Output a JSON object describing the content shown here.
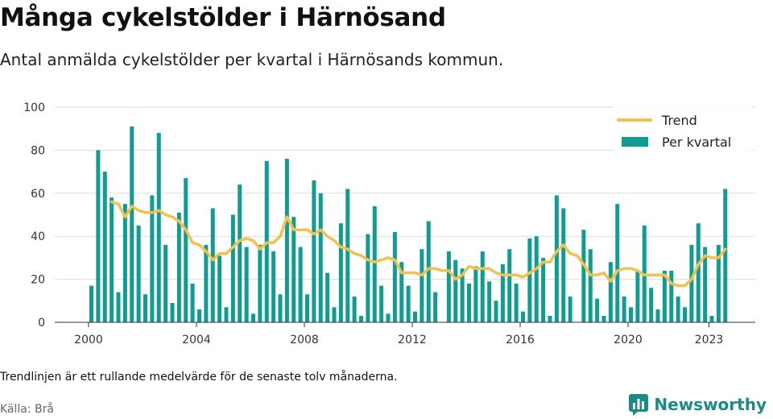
{
  "header": {
    "title": "Många cykelstölder i Härnösand",
    "subtitle": "Antal anmälda cykelstölder per kvartal i Härnösands kommun."
  },
  "footer": {
    "note": "Trendlinjen är ett rullande medelvärde för de senaste tolv månaderna.",
    "source": "Källa: Brå",
    "brand": "Newsworthy"
  },
  "colors": {
    "bars": "#0f9c92",
    "trend": "#f2c14e",
    "grid": "#dddddd",
    "brand": "#1a8c85"
  },
  "icons": {
    "brand_logo": "newsworthy-logo-icon"
  },
  "chart_data": {
    "type": "bar",
    "title": "",
    "xlabel": "",
    "ylabel": "",
    "ylim": [
      0,
      100
    ],
    "yticks": [
      0,
      20,
      40,
      60,
      80,
      100
    ],
    "xticks": [
      2000,
      2004,
      2008,
      2012,
      2016,
      2020,
      2023
    ],
    "grid": true,
    "legend_position": "top-right",
    "legend": [
      "Trend",
      "Per kvartal"
    ],
    "categories": [
      "2000Q1",
      "2000Q2",
      "2000Q3",
      "2000Q4",
      "2001Q1",
      "2001Q2",
      "2001Q3",
      "2001Q4",
      "2002Q1",
      "2002Q2",
      "2002Q3",
      "2002Q4",
      "2003Q1",
      "2003Q2",
      "2003Q3",
      "2003Q4",
      "2004Q1",
      "2004Q2",
      "2004Q3",
      "2004Q4",
      "2005Q1",
      "2005Q2",
      "2005Q3",
      "2005Q4",
      "2006Q1",
      "2006Q2",
      "2006Q3",
      "2006Q4",
      "2007Q1",
      "2007Q2",
      "2007Q3",
      "2007Q4",
      "2008Q1",
      "2008Q2",
      "2008Q3",
      "2008Q4",
      "2009Q1",
      "2009Q2",
      "2009Q3",
      "2009Q4",
      "2010Q1",
      "2010Q2",
      "2010Q3",
      "2010Q4",
      "2011Q1",
      "2011Q2",
      "2011Q3",
      "2011Q4",
      "2012Q1",
      "2012Q2",
      "2012Q3",
      "2012Q4",
      "2013Q1",
      "2013Q2",
      "2013Q3",
      "2013Q4",
      "2014Q1",
      "2014Q2",
      "2014Q3",
      "2014Q4",
      "2015Q1",
      "2015Q2",
      "2015Q3",
      "2015Q4",
      "2016Q1",
      "2016Q2",
      "2016Q3",
      "2016Q4",
      "2017Q1",
      "2017Q2",
      "2017Q3",
      "2017Q4",
      "2018Q1",
      "2018Q2",
      "2018Q3",
      "2018Q4",
      "2019Q1",
      "2019Q2",
      "2019Q3",
      "2019Q4",
      "2020Q1",
      "2020Q2",
      "2020Q3",
      "2020Q4",
      "2021Q1",
      "2021Q2",
      "2021Q3",
      "2021Q4",
      "2022Q1",
      "2022Q2",
      "2022Q3",
      "2022Q4",
      "2023Q1",
      "2023Q2",
      "2023Q3"
    ],
    "series": [
      {
        "name": "Per kvartal",
        "values": [
          17,
          80,
          70,
          58,
          14,
          55,
          91,
          45,
          13,
          59,
          88,
          36,
          9,
          51,
          67,
          18,
          6,
          36,
          53,
          31,
          7,
          50,
          64,
          35,
          4,
          36,
          75,
          33,
          13,
          76,
          49,
          35,
          13,
          66,
          60,
          23,
          7,
          46,
          62,
          12,
          3,
          41,
          54,
          17,
          4,
          42,
          28,
          17,
          5,
          34,
          47,
          14,
          0,
          33,
          29,
          25,
          18,
          26,
          33,
          19,
          10,
          27,
          34,
          18,
          5,
          39,
          40,
          30,
          3,
          59,
          53,
          12,
          0,
          43,
          34,
          11,
          3,
          28,
          55,
          12,
          7,
          24,
          45,
          16,
          6,
          24,
          24,
          12,
          7,
          36,
          46,
          35,
          3,
          36,
          62
        ]
      },
      {
        "name": "Trend",
        "values": [
          null,
          null,
          null,
          56,
          55,
          49,
          54,
          52,
          51,
          51,
          52,
          50,
          49,
          47,
          43,
          37,
          36,
          33,
          29,
          32,
          32,
          35,
          38,
          39,
          38,
          34,
          37,
          37,
          40,
          49,
          43,
          43,
          43,
          41,
          43,
          40,
          38,
          35,
          34,
          32,
          31,
          29,
          28,
          29,
          30,
          29,
          23,
          23,
          23,
          22,
          25,
          25,
          24,
          24,
          20,
          22,
          26,
          25,
          25,
          25,
          23,
          22,
          22,
          22,
          21,
          23,
          25,
          28,
          28,
          33,
          36,
          32,
          31,
          27,
          22,
          22,
          23,
          19,
          24,
          25,
          25,
          24,
          22,
          22,
          22,
          22,
          18,
          17,
          17,
          20,
          27,
          31,
          30,
          30,
          34
        ]
      }
    ]
  }
}
